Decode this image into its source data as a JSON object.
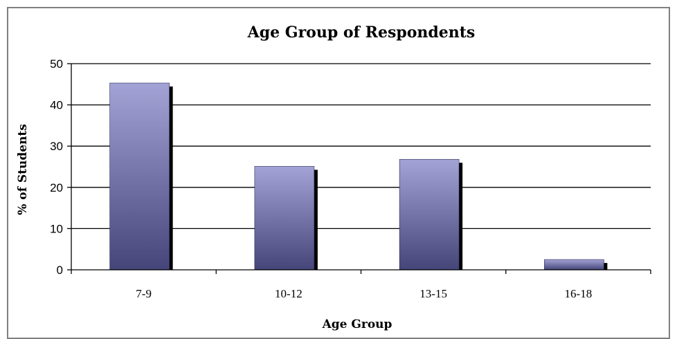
{
  "chart_data": {
    "type": "bar",
    "title": "Age Group of Respondents",
    "xlabel": "Age Group",
    "ylabel": "% of Students",
    "categories": [
      "7-9",
      "10-12",
      "13-15",
      "16-18"
    ],
    "values": [
      45.3,
      25.1,
      26.8,
      2.5
    ],
    "ylim": [
      0,
      50
    ],
    "yticks": [
      "0",
      "10",
      "20",
      "30",
      "40",
      "50"
    ],
    "grid": true,
    "legend": "none",
    "colors": {
      "bar_light": "#a3a3d6",
      "bar_dark": "#45457a",
      "shadow": "#000000",
      "grid": "#000000"
    }
  }
}
